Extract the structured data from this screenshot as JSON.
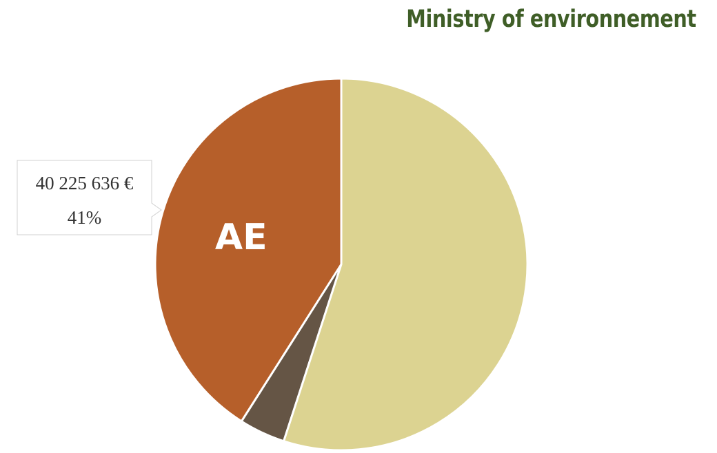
{
  "title": "Ministry of environnement",
  "colors": {
    "title": "#3f5e27",
    "slices": [
      "#b65f2a",
      "#655545",
      "#dcd391"
    ],
    "label_text": "#ffffff",
    "callout_text": "#333333",
    "callout_border": "#d0d0d0"
  },
  "chart_data": {
    "type": "pie",
    "start": "12 o'clock",
    "direction": "counterclockwise",
    "slices": [
      {
        "label": "AE",
        "value": 40225636,
        "value_label": "40 225 636 €",
        "percent": 41,
        "percent_label": "41%",
        "color": "#b65f2a"
      },
      {
        "label": "",
        "percent": 4,
        "color": "#655545"
      },
      {
        "label": "",
        "percent": 55,
        "color": "#dcd391"
      }
    ]
  }
}
